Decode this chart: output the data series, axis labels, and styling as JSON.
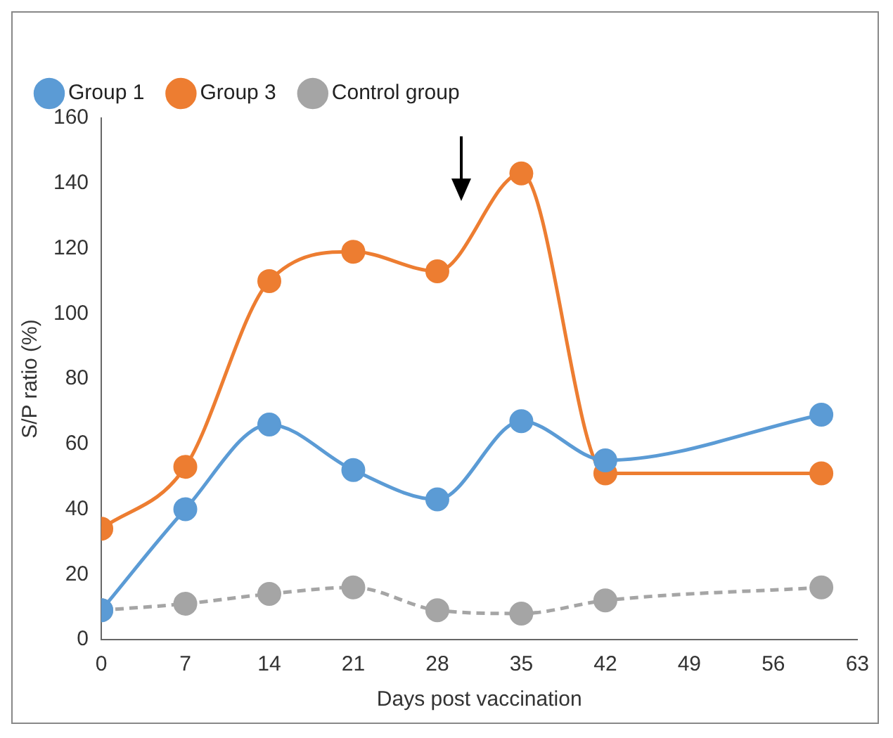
{
  "chart_data": {
    "type": "line",
    "xlabel": "Days post vaccination",
    "ylabel": "S/P ratio (%)",
    "xlim": [
      0,
      63
    ],
    "xticks": [
      0,
      7,
      14,
      21,
      28,
      35,
      42,
      49,
      56,
      63
    ],
    "ylim": [
      0,
      160
    ],
    "yticks": [
      0,
      20,
      40,
      60,
      80,
      100,
      120,
      140,
      160
    ],
    "grid": false,
    "legend": "top",
    "marker": "circle",
    "series": [
      {
        "name": "Group 1",
        "color": "#5b9bd5",
        "x": [
          0,
          7,
          14,
          21,
          28,
          35,
          42,
          60
        ],
        "values": [
          9,
          40,
          66,
          52,
          43,
          67,
          55,
          69
        ],
        "line_style": "solid"
      },
      {
        "name": "Group 3",
        "color": "#ed7d31",
        "x": [
          0,
          7,
          14,
          21,
          28,
          35,
          42,
          60
        ],
        "values": [
          34,
          53,
          110,
          119,
          113,
          143,
          51,
          51
        ],
        "line_style": "solid"
      },
      {
        "name": "Control group",
        "color": "#a5a5a5",
        "x": [
          0,
          7,
          14,
          21,
          28,
          35,
          42,
          60
        ],
        "values": [
          9,
          11,
          14,
          16,
          9,
          8,
          12,
          16
        ],
        "line_style": "dashed"
      }
    ]
  }
}
